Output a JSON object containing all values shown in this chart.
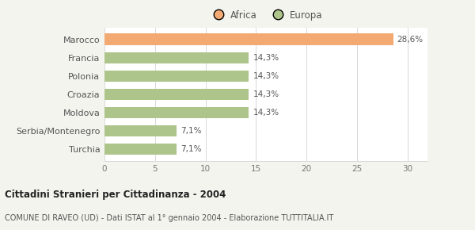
{
  "categories": [
    "Marocco",
    "Francia",
    "Polonia",
    "Croazia",
    "Moldova",
    "Serbia/Montenegro",
    "Turchia"
  ],
  "values": [
    28.6,
    14.3,
    14.3,
    14.3,
    14.3,
    7.1,
    7.1
  ],
  "labels": [
    "28,6%",
    "14,3%",
    "14,3%",
    "14,3%",
    "14,3%",
    "7,1%",
    "7,1%"
  ],
  "colors": [
    "#f2aa72",
    "#adc48a",
    "#adc48a",
    "#adc48a",
    "#adc48a",
    "#adc48a",
    "#adc48a"
  ],
  "legend_labels": [
    "Africa",
    "Europa"
  ],
  "legend_colors": [
    "#f2aa72",
    "#adc48a"
  ],
  "xlim": [
    0,
    32
  ],
  "xticks": [
    0,
    5,
    10,
    15,
    20,
    25,
    30
  ],
  "title": "Cittadini Stranieri per Cittadinanza - 2004",
  "subtitle": "COMUNE DI RAVEO (UD) - Dati ISTAT al 1° gennaio 2004 - Elaborazione TUTTITALIA.IT",
  "background_color": "#f4f4ee",
  "bar_background": "#ffffff"
}
